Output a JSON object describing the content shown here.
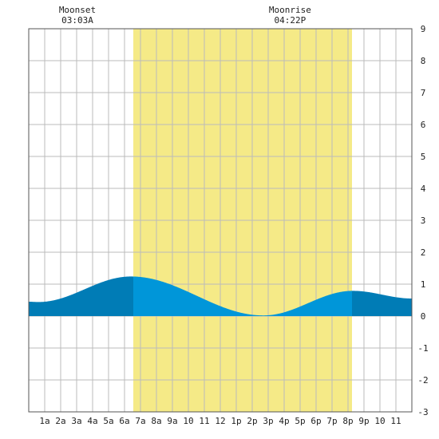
{
  "chart_data": {
    "type": "area",
    "title": "",
    "xlabel": "",
    "ylabel": "",
    "xlim": [
      0,
      24
    ],
    "ylim": [
      -3,
      9
    ],
    "grid": true,
    "x_tick_labels": [
      "1a",
      "2a",
      "3a",
      "4a",
      "5a",
      "6a",
      "7a",
      "8a",
      "9a",
      "10",
      "11",
      "12",
      "1p",
      "2p",
      "3p",
      "4p",
      "5p",
      "6p",
      "7p",
      "8p",
      "9p",
      "10",
      "11"
    ],
    "y_tick_labels": [
      "-3",
      "-2",
      "-1",
      "0",
      "1",
      "2",
      "3",
      "4",
      "5",
      "6",
      "7",
      "8",
      "9"
    ],
    "daylight": {
      "start_hour": 6.55,
      "end_hour": 20.25
    },
    "moon_events": [
      {
        "label": "Moonset",
        "time": "03:03A",
        "hour": 3.05
      },
      {
        "label": "Moonrise",
        "time": "04:22P",
        "hour": 16.37
      }
    ],
    "tide_extrema": [
      {
        "hour": 0.0,
        "height": 0.45
      },
      {
        "hour": 0.6,
        "height": 0.44
      },
      {
        "hour": 6.4,
        "height": 1.24
      },
      {
        "hour": 14.7,
        "height": 0.02
      },
      {
        "hour": 20.3,
        "height": 0.79
      },
      {
        "hour": 24.0,
        "height": 0.55
      }
    ],
    "colors": {
      "daylight": "#f5ea87",
      "tide_day": "#0096d9",
      "tide_night": "#007cb6",
      "grid": "#bbbbbb",
      "axis": "#555555",
      "background": "#ffffff"
    }
  }
}
